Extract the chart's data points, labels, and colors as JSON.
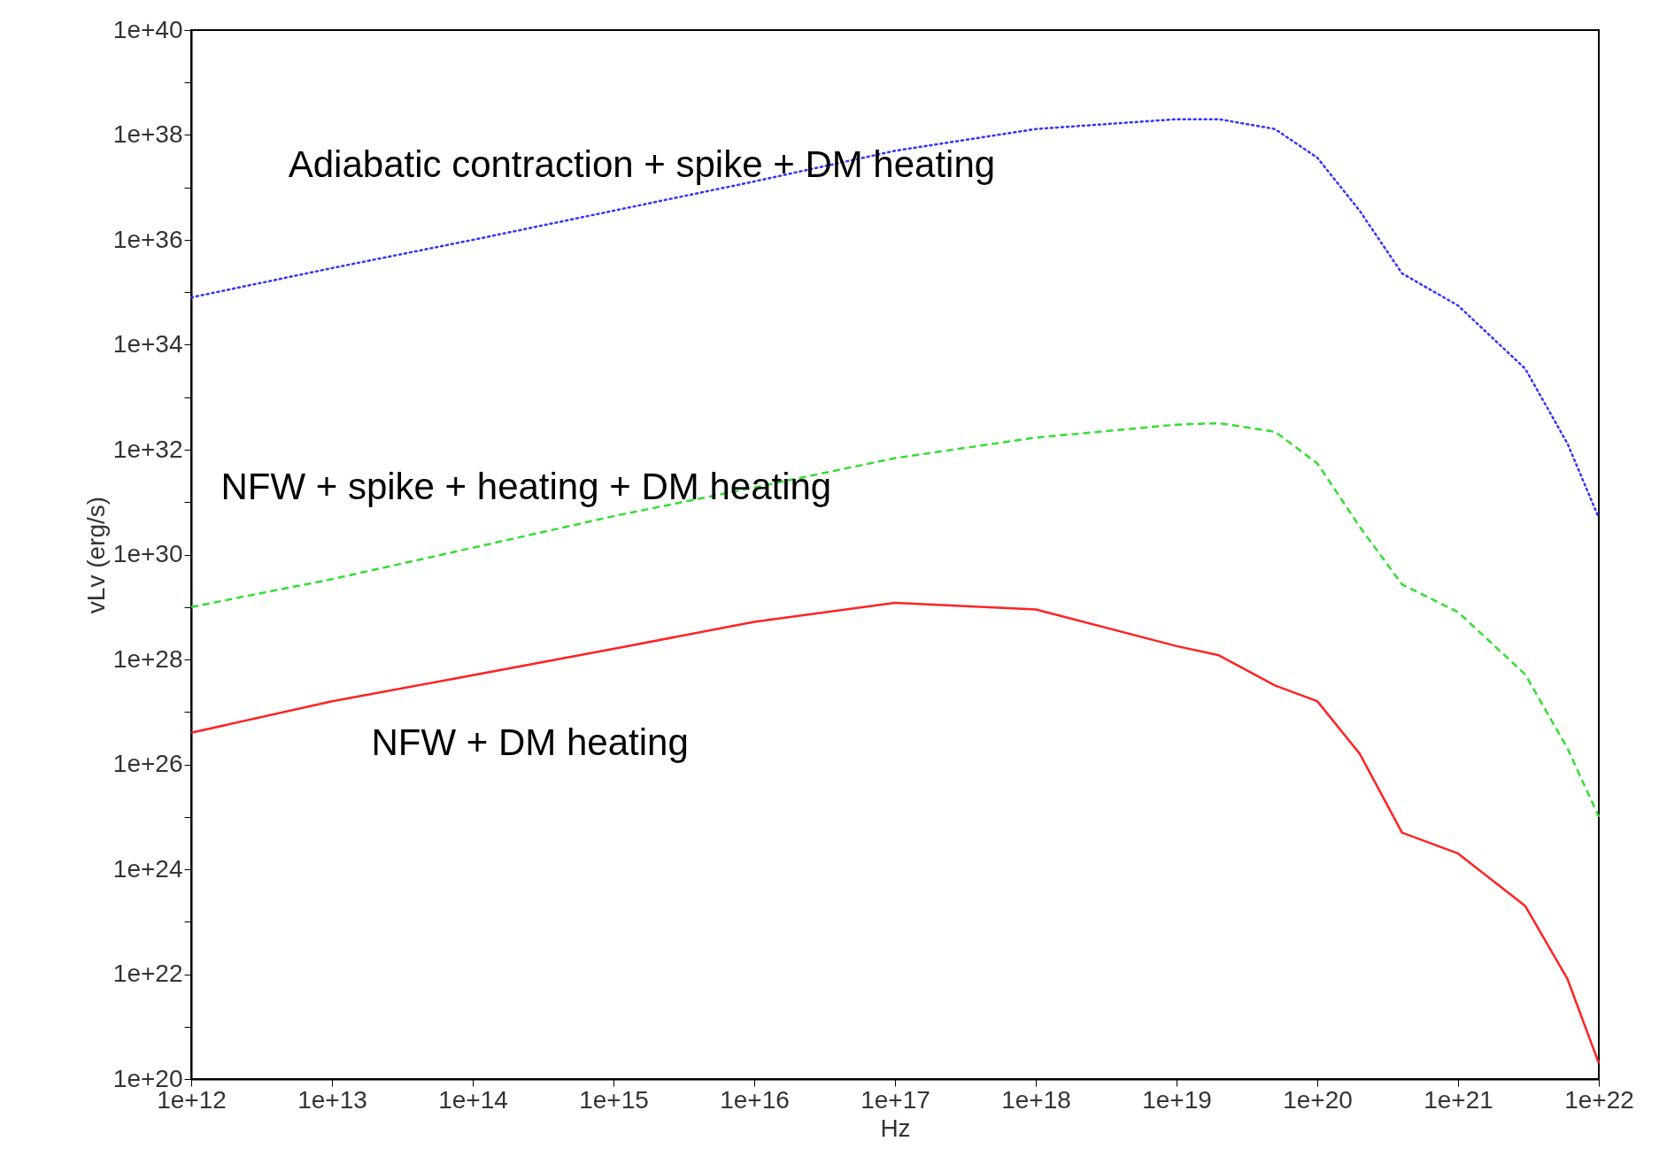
{
  "chart_data": {
    "type": "line",
    "xlabel": "Hz",
    "ylabel": "vLv (erg/s)",
    "log": "xy",
    "grid": false,
    "x": [
      1000000000000.0,
      10000000000000.0,
      100000000000000.0,
      1000000000000000.0,
      1e+16,
      1e+17,
      1e+18,
      1e+19,
      2e+19,
      5e+19,
      1e+20,
      2e+20,
      4e+20,
      1e+21,
      3e+21,
      6e+21,
      1e+22
    ],
    "series": [
      {
        "color": "#3333ff",
        "line_style": "dotted",
        "values": [
          8e+34,
          2.9e+35,
          1e+36,
          3.6e+36,
          1.3e+37,
          5e+37,
          1.3e+38,
          2e+38,
          2e+38,
          1.3e+38,
          3.7e+37,
          3.6e+36,
          2.3e+35,
          5.6e+34,
          3.5e+33,
          1.3e+32,
          5e+30
        ]
      },
      {
        "color": "#33dd33",
        "line_style": "dashed",
        "values": [
          1e+29,
          3.4e+29,
          1.35e+30,
          5.4e+30,
          1.9e+31,
          6.9e+31,
          1.7e+32,
          3e+32,
          3.2e+32,
          2.2e+32,
          5.5e+31,
          3.4e+30,
          2.7e+29,
          8e+28,
          5.2e+27,
          2e+26,
          1e+25
        ]
      },
      {
        "color": "#ff2222",
        "line_style": "solid",
        "values": [
          4e+26,
          1.6e+27,
          5e+27,
          1.6e+28,
          5.2e+28,
          1.2e+29,
          9e+28,
          1.8e+28,
          1.2e+28,
          3.2e+27,
          1.6e+27,
          1.6e+26,
          5e+24,
          2e+24,
          2e+23,
          8e+21,
          2e+20
        ]
      }
    ],
    "annotations": [
      "Adiabatic contraction + spike + DM heating",
      "NFW + spike + heating + DM heating",
      "NFW + DM heating"
    ],
    "xlim": [
      1000000000000.0,
      1e+22
    ],
    "xticks": [
      {
        "value": 1000000000000.0,
        "label": "1e+12"
      },
      {
        "value": 10000000000000.0,
        "label": "1e+13"
      },
      {
        "value": 100000000000000.0,
        "label": "1e+14"
      },
      {
        "value": 1000000000000000.0,
        "label": "1e+15"
      },
      {
        "value": 1e+16,
        "label": "1e+16"
      },
      {
        "value": 1e+17,
        "label": "1e+17"
      },
      {
        "value": 1e+18,
        "label": "1e+18"
      },
      {
        "value": 1e+19,
        "label": "1e+19"
      },
      {
        "value": 1e+20,
        "label": "1e+20"
      },
      {
        "value": 1e+21,
        "label": "1e+21"
      },
      {
        "value": 1e+22,
        "label": "1e+22"
      }
    ],
    "ylim": [
      1e+20,
      1e+40
    ],
    "yticks": [
      {
        "value": 1e+20,
        "label": "1e+20"
      },
      {
        "value": 1e+21,
        "label": null
      },
      {
        "value": 1e+22,
        "label": "1e+22"
      },
      {
        "value": 1e+23,
        "label": null
      },
      {
        "value": 1e+24,
        "label": "1e+24"
      },
      {
        "value": 1e+25,
        "label": null
      },
      {
        "value": 1e+26,
        "label": "1e+26"
      },
      {
        "value": 1e+27,
        "label": null
      },
      {
        "value": 1e+28,
        "label": "1e+28"
      },
      {
        "value": 1e+29,
        "label": null
      },
      {
        "value": 1e+30,
        "label": "1e+30"
      },
      {
        "value": 1e+31,
        "label": null
      },
      {
        "value": 1e+32,
        "label": "1e+32"
      },
      {
        "value": 1e+33,
        "label": null
      },
      {
        "value": 1e+34,
        "label": "1e+34"
      },
      {
        "value": 1e+35,
        "label": null
      },
      {
        "value": 1e+36,
        "label": "1e+36"
      },
      {
        "value": 1e+37,
        "label": null
      },
      {
        "value": 1e+38,
        "label": "1e+38"
      },
      {
        "value": 1e+39,
        "label": null
      },
      {
        "value": 1e+40,
        "label": "1e+40"
      }
    ]
  }
}
